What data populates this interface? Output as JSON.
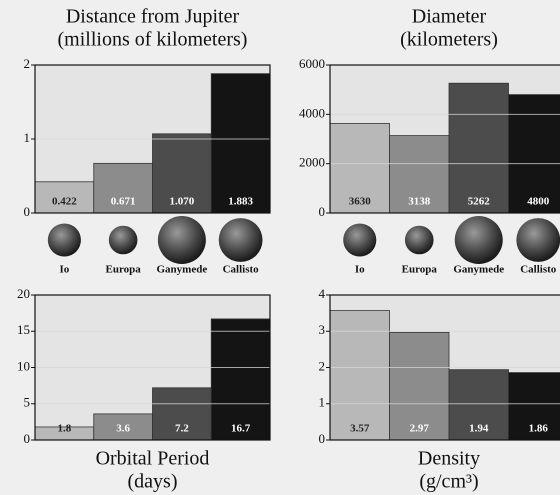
{
  "chart_data": [
    {
      "type": "bar",
      "title": "Distance from Jupiter",
      "subtitle": "(millions of kilometers)",
      "categories": [
        "Io",
        "Europa",
        "Ganymede",
        "Callisto"
      ],
      "values": [
        0.422,
        0.671,
        1.07,
        1.883
      ],
      "value_labels": [
        "0.422",
        "0.671",
        "1.070",
        "1.883"
      ],
      "colors": [
        "#b8b8b8",
        "#8c8c8c",
        "#4c4c4c",
        "#141414"
      ],
      "ylim": [
        0,
        2
      ],
      "yticks": [
        0,
        1,
        2
      ],
      "grid": true
    },
    {
      "type": "bar",
      "title": "Diameter",
      "subtitle": "(kilometers)",
      "categories": [
        "Io",
        "Europa",
        "Ganymede",
        "Callisto"
      ],
      "values": [
        3630,
        3138,
        5262,
        4800
      ],
      "colors": [
        "#b8b8b8",
        "#8c8c8c",
        "#4c4c4c",
        "#141414"
      ],
      "ylim": [
        0,
        6000
      ],
      "yticks": [
        0,
        2000,
        4000,
        6000
      ],
      "grid": true
    },
    {
      "type": "bar",
      "title": "Orbital Period",
      "subtitle": "(days)",
      "values": [
        1.8,
        3.6,
        7.2,
        16.7
      ],
      "colors": [
        "#b8b8b8",
        "#8c8c8c",
        "#4c4c4c",
        "#141414"
      ],
      "ylim": [
        0,
        20
      ],
      "yticks": [
        0,
        5,
        10,
        15,
        20
      ],
      "grid": true
    },
    {
      "type": "bar",
      "title": "Density",
      "subtitle": "(g/cm³)",
      "values": [
        3.57,
        2.97,
        1.94,
        1.86
      ],
      "colors": [
        "#b8b8b8",
        "#8c8c8c",
        "#4c4c4c",
        "#141414"
      ],
      "ylim": [
        0,
        4
      ],
      "yticks": [
        0,
        1,
        2,
        3,
        4
      ],
      "grid": true
    }
  ]
}
